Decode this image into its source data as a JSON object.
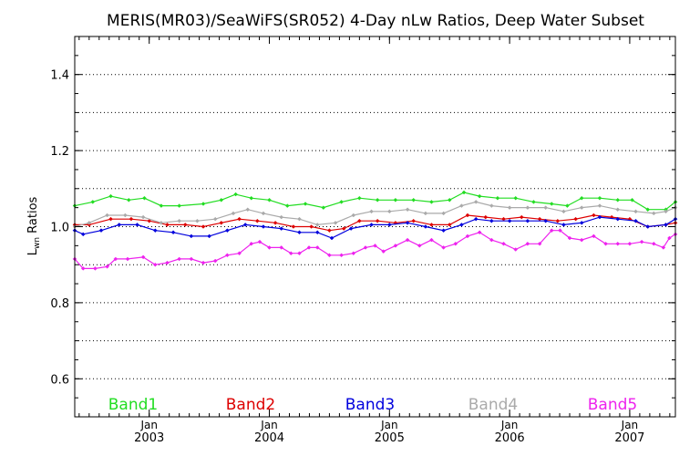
{
  "chart_data": {
    "type": "line",
    "title": "MERIS(MR03)/SeaWiFS(SR052) 4-Day nLw Ratios, Deep Water Subset",
    "ylabel_main": "L",
    "ylabel_sub": "wn",
    "ylabel_rest": " Ratios",
    "xlabel": "",
    "xlim": [
      2002.38,
      2007.38
    ],
    "ylim": [
      0.5,
      1.5
    ],
    "yticks": [
      {
        "value": 0.6,
        "label": "0.6"
      },
      {
        "value": 0.8,
        "label": "0.8"
      },
      {
        "value": 1.0,
        "label": "1.0"
      },
      {
        "value": 1.2,
        "label": "1.2"
      },
      {
        "value": 1.4,
        "label": "1.4"
      }
    ],
    "ygrid": [
      0.6,
      0.7,
      0.8,
      0.9,
      1.0,
      1.1,
      1.2,
      1.3,
      1.4
    ],
    "xticks": [
      {
        "value": 2003.0,
        "month": "Jan",
        "year": "2003"
      },
      {
        "value": 2004.0,
        "month": "Jan",
        "year": "2004"
      },
      {
        "value": 2005.0,
        "month": "Jan",
        "year": "2005"
      },
      {
        "value": 2006.0,
        "month": "Jan",
        "year": "2006"
      },
      {
        "value": 2007.0,
        "month": "Jan",
        "year": "2007"
      }
    ],
    "legend_placement": "bottom",
    "series": [
      {
        "name": "Band1",
        "color": "#22dd22",
        "values": [
          [
            2002.38,
            1.055
          ],
          [
            2002.53,
            1.065
          ],
          [
            2002.68,
            1.08
          ],
          [
            2002.83,
            1.07
          ],
          [
            2002.96,
            1.075
          ],
          [
            2003.1,
            1.055
          ],
          [
            2003.25,
            1.055
          ],
          [
            2003.45,
            1.06
          ],
          [
            2003.6,
            1.07
          ],
          [
            2003.72,
            1.085
          ],
          [
            2003.85,
            1.075
          ],
          [
            2004.0,
            1.07
          ],
          [
            2004.15,
            1.055
          ],
          [
            2004.3,
            1.06
          ],
          [
            2004.45,
            1.05
          ],
          [
            2004.6,
            1.065
          ],
          [
            2004.75,
            1.075
          ],
          [
            2004.9,
            1.07
          ],
          [
            2005.05,
            1.07
          ],
          [
            2005.2,
            1.07
          ],
          [
            2005.35,
            1.065
          ],
          [
            2005.5,
            1.07
          ],
          [
            2005.62,
            1.09
          ],
          [
            2005.75,
            1.08
          ],
          [
            2005.9,
            1.075
          ],
          [
            2006.05,
            1.075
          ],
          [
            2006.2,
            1.065
          ],
          [
            2006.35,
            1.06
          ],
          [
            2006.48,
            1.055
          ],
          [
            2006.6,
            1.075
          ],
          [
            2006.75,
            1.075
          ],
          [
            2006.9,
            1.07
          ],
          [
            2007.02,
            1.07
          ],
          [
            2007.15,
            1.045
          ],
          [
            2007.3,
            1.045
          ],
          [
            2007.38,
            1.065
          ]
        ]
      },
      {
        "name": "Band2",
        "color": "#dd0000",
        "values": [
          [
            2002.38,
            1.005
          ],
          [
            2002.5,
            1.005
          ],
          [
            2002.68,
            1.02
          ],
          [
            2002.85,
            1.02
          ],
          [
            2003.0,
            1.015
          ],
          [
            2003.15,
            1.005
          ],
          [
            2003.3,
            1.005
          ],
          [
            2003.45,
            1.0
          ],
          [
            2003.6,
            1.01
          ],
          [
            2003.75,
            1.02
          ],
          [
            2003.9,
            1.015
          ],
          [
            2004.05,
            1.01
          ],
          [
            2004.2,
            1.0
          ],
          [
            2004.35,
            1.0
          ],
          [
            2004.5,
            0.99
          ],
          [
            2004.62,
            0.995
          ],
          [
            2004.75,
            1.015
          ],
          [
            2004.9,
            1.015
          ],
          [
            2005.05,
            1.01
          ],
          [
            2005.2,
            1.015
          ],
          [
            2005.35,
            1.005
          ],
          [
            2005.5,
            1.005
          ],
          [
            2005.65,
            1.03
          ],
          [
            2005.8,
            1.025
          ],
          [
            2005.95,
            1.02
          ],
          [
            2006.1,
            1.025
          ],
          [
            2006.25,
            1.02
          ],
          [
            2006.4,
            1.015
          ],
          [
            2006.55,
            1.02
          ],
          [
            2006.7,
            1.03
          ],
          [
            2006.85,
            1.025
          ],
          [
            2007.0,
            1.02
          ],
          [
            2007.15,
            1.0
          ],
          [
            2007.3,
            1.005
          ],
          [
            2007.38,
            1.01
          ]
        ]
      },
      {
        "name": "Band3",
        "color": "#0000dd",
        "values": [
          [
            2002.38,
            0.99
          ],
          [
            2002.45,
            0.98
          ],
          [
            2002.6,
            0.99
          ],
          [
            2002.75,
            1.005
          ],
          [
            2002.9,
            1.005
          ],
          [
            2003.05,
            0.99
          ],
          [
            2003.2,
            0.985
          ],
          [
            2003.35,
            0.975
          ],
          [
            2003.5,
            0.975
          ],
          [
            2003.65,
            0.99
          ],
          [
            2003.8,
            1.005
          ],
          [
            2003.95,
            1.0
          ],
          [
            2004.1,
            0.995
          ],
          [
            2004.25,
            0.985
          ],
          [
            2004.4,
            0.985
          ],
          [
            2004.52,
            0.97
          ],
          [
            2004.68,
            0.995
          ],
          [
            2004.85,
            1.005
          ],
          [
            2005.0,
            1.005
          ],
          [
            2005.15,
            1.01
          ],
          [
            2005.3,
            1.0
          ],
          [
            2005.45,
            0.99
          ],
          [
            2005.6,
            1.005
          ],
          [
            2005.72,
            1.02
          ],
          [
            2005.85,
            1.015
          ],
          [
            2006.0,
            1.015
          ],
          [
            2006.15,
            1.015
          ],
          [
            2006.3,
            1.015
          ],
          [
            2006.45,
            1.005
          ],
          [
            2006.6,
            1.01
          ],
          [
            2006.75,
            1.025
          ],
          [
            2006.9,
            1.02
          ],
          [
            2007.05,
            1.015
          ],
          [
            2007.15,
            1.0
          ],
          [
            2007.3,
            1.005
          ],
          [
            2007.38,
            1.02
          ]
        ]
      },
      {
        "name": "Band4",
        "color": "#aaaaaa",
        "values": [
          [
            2002.38,
            1.0
          ],
          [
            2002.5,
            1.01
          ],
          [
            2002.65,
            1.03
          ],
          [
            2002.8,
            1.03
          ],
          [
            2002.95,
            1.025
          ],
          [
            2003.1,
            1.01
          ],
          [
            2003.25,
            1.015
          ],
          [
            2003.4,
            1.015
          ],
          [
            2003.55,
            1.02
          ],
          [
            2003.7,
            1.035
          ],
          [
            2003.82,
            1.045
          ],
          [
            2003.95,
            1.035
          ],
          [
            2004.1,
            1.025
          ],
          [
            2004.25,
            1.02
          ],
          [
            2004.4,
            1.005
          ],
          [
            2004.55,
            1.01
          ],
          [
            2004.7,
            1.03
          ],
          [
            2004.85,
            1.04
          ],
          [
            2005.0,
            1.04
          ],
          [
            2005.15,
            1.045
          ],
          [
            2005.3,
            1.035
          ],
          [
            2005.45,
            1.035
          ],
          [
            2005.6,
            1.055
          ],
          [
            2005.72,
            1.065
          ],
          [
            2005.85,
            1.055
          ],
          [
            2006.0,
            1.05
          ],
          [
            2006.15,
            1.05
          ],
          [
            2006.3,
            1.05
          ],
          [
            2006.45,
            1.04
          ],
          [
            2006.6,
            1.05
          ],
          [
            2006.75,
            1.055
          ],
          [
            2006.9,
            1.045
          ],
          [
            2007.05,
            1.04
          ],
          [
            2007.2,
            1.035
          ],
          [
            2007.3,
            1.04
          ],
          [
            2007.38,
            1.05
          ]
        ]
      },
      {
        "name": "Band5",
        "color": "#ee22ee",
        "values": [
          [
            2002.38,
            0.915
          ],
          [
            2002.45,
            0.89
          ],
          [
            2002.55,
            0.89
          ],
          [
            2002.65,
            0.895
          ],
          [
            2002.72,
            0.915
          ],
          [
            2002.82,
            0.915
          ],
          [
            2002.95,
            0.92
          ],
          [
            2003.05,
            0.9
          ],
          [
            2003.15,
            0.905
          ],
          [
            2003.25,
            0.915
          ],
          [
            2003.35,
            0.915
          ],
          [
            2003.45,
            0.905
          ],
          [
            2003.55,
            0.91
          ],
          [
            2003.65,
            0.925
          ],
          [
            2003.75,
            0.93
          ],
          [
            2003.85,
            0.955
          ],
          [
            2003.92,
            0.96
          ],
          [
            2004.0,
            0.945
          ],
          [
            2004.1,
            0.945
          ],
          [
            2004.18,
            0.93
          ],
          [
            2004.25,
            0.93
          ],
          [
            2004.33,
            0.945
          ],
          [
            2004.4,
            0.945
          ],
          [
            2004.5,
            0.925
          ],
          [
            2004.6,
            0.925
          ],
          [
            2004.7,
            0.93
          ],
          [
            2004.8,
            0.945
          ],
          [
            2004.88,
            0.95
          ],
          [
            2004.95,
            0.935
          ],
          [
            2005.05,
            0.95
          ],
          [
            2005.15,
            0.965
          ],
          [
            2005.25,
            0.95
          ],
          [
            2005.35,
            0.965
          ],
          [
            2005.45,
            0.945
          ],
          [
            2005.55,
            0.955
          ],
          [
            2005.65,
            0.975
          ],
          [
            2005.75,
            0.985
          ],
          [
            2005.85,
            0.965
          ],
          [
            2005.95,
            0.955
          ],
          [
            2006.05,
            0.94
          ],
          [
            2006.15,
            0.955
          ],
          [
            2006.25,
            0.955
          ],
          [
            2006.35,
            0.99
          ],
          [
            2006.42,
            0.99
          ],
          [
            2006.5,
            0.97
          ],
          [
            2006.6,
            0.965
          ],
          [
            2006.7,
            0.975
          ],
          [
            2006.8,
            0.955
          ],
          [
            2006.9,
            0.955
          ],
          [
            2007.0,
            0.955
          ],
          [
            2007.1,
            0.96
          ],
          [
            2007.2,
            0.955
          ],
          [
            2007.28,
            0.945
          ],
          [
            2007.33,
            0.97
          ],
          [
            2007.38,
            0.98
          ]
        ]
      }
    ]
  }
}
